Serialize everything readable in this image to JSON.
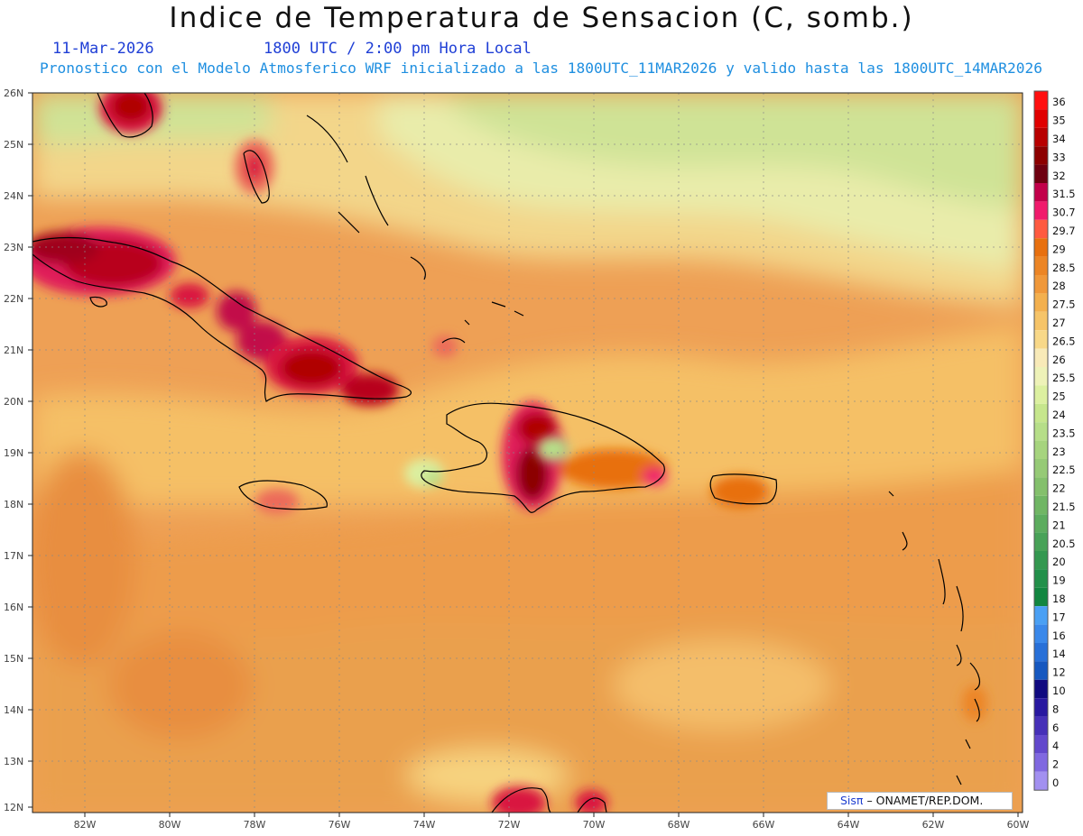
{
  "header": {
    "title": "Indice de Temperatura de Sensacion (C, somb.)",
    "date": "11-Mar-2026",
    "time": "1800 UTC / 2:00 pm Hora Local",
    "run": "Pronostico con el Modelo Atmosferico WRF inicializado a las 1800UTC_11MAR2026 y valido hasta las  1800UTC_14MAR2026"
  },
  "axes": {
    "lat_labels": [
      "26N",
      "25N",
      "24N",
      "23N",
      "22N",
      "21N",
      "20N",
      "19N",
      "18N",
      "17N",
      "16N",
      "15N",
      "14N",
      "13N",
      "12N"
    ],
    "lon_labels": [
      "82W",
      "80W",
      "78W",
      "76W",
      "74W",
      "72W",
      "70W",
      "68W",
      "66W",
      "64W",
      "62W",
      "60W"
    ]
  },
  "colorbar": {
    "levels": [
      "36",
      "35",
      "34",
      "33",
      "32",
      "31.5",
      "30.7",
      "29.7",
      "29",
      "28.5",
      "28",
      "27.5",
      "27",
      "26.5",
      "26",
      "25.5",
      "25",
      "24",
      "23.5",
      "23",
      "22.5",
      "22",
      "21.5",
      "21",
      "20.5",
      "20",
      "19",
      "18",
      "17",
      "16",
      "14",
      "12",
      "10",
      "8",
      "6",
      "4",
      "2",
      "0"
    ],
    "colors": [
      "#ff1010",
      "#e00000",
      "#b80000",
      "#8c0000",
      "#6e0010",
      "#c2004a",
      "#f01a6c",
      "#ff5a40",
      "#e8700f",
      "#ec8525",
      "#f0983a",
      "#f3b04e",
      "#f6c468",
      "#f8d888",
      "#f8eab8",
      "#eef2b8",
      "#dcf0a0",
      "#c6e68c",
      "#b6de88",
      "#a6d47e",
      "#96ca76",
      "#84c06c",
      "#70b664",
      "#5cac5e",
      "#48a258",
      "#349850",
      "#22904a",
      "#128640",
      "#4aa0f4",
      "#3a88ea",
      "#2870d8",
      "#1658c0",
      "#100a80",
      "#2818a0",
      "#4630b8",
      "#6248cc",
      "#8068e0",
      "#a290f0"
    ]
  },
  "credit": {
    "brand": "Sisπ",
    "text": "– ONAMET/REP.DOM."
  }
}
